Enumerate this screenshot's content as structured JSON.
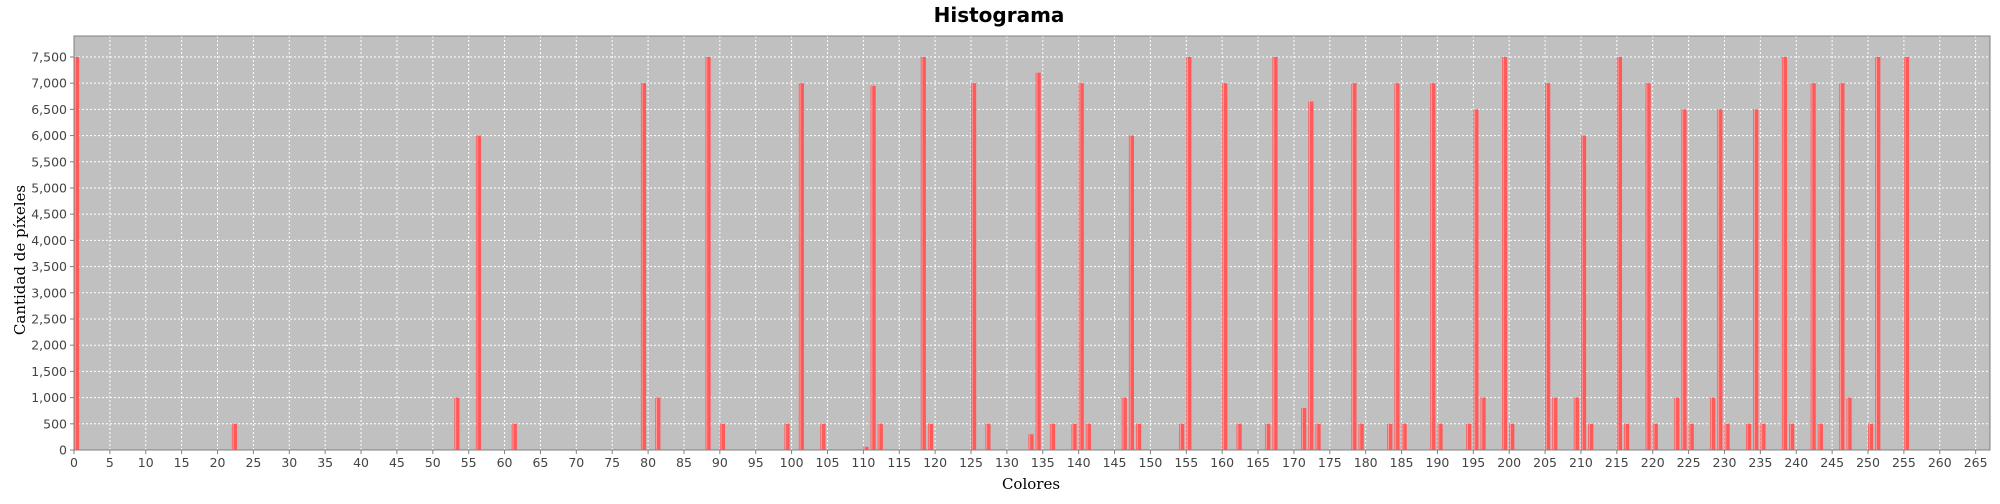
{
  "chart_data": {
    "type": "bar",
    "title": "Histograma",
    "xlabel": "Colores",
    "ylabel": "Cantidad de píxeles",
    "xlim": [
      0,
      267
    ],
    "ylim": [
      0,
      7900
    ],
    "x_ticks": [
      0,
      5,
      10,
      15,
      20,
      25,
      30,
      35,
      40,
      45,
      50,
      55,
      60,
      65,
      70,
      75,
      80,
      85,
      90,
      95,
      100,
      105,
      110,
      115,
      120,
      125,
      130,
      135,
      140,
      145,
      150,
      155,
      160,
      165,
      170,
      175,
      180,
      185,
      190,
      195,
      200,
      205,
      210,
      215,
      220,
      225,
      230,
      235,
      240,
      245,
      250,
      255,
      260,
      265
    ],
    "y_ticks": [
      0,
      500,
      1000,
      1500,
      2000,
      2500,
      3000,
      3500,
      4000,
      4500,
      5000,
      5500,
      6000,
      6500,
      7000,
      7500
    ],
    "y_tick_labels": [
      "0",
      "500",
      "1,000",
      "1,500",
      "2,000",
      "2,500",
      "3,000",
      "3,500",
      "4,000",
      "4,500",
      "5,000",
      "5,500",
      "6,000",
      "6,500",
      "7,000",
      "7,500"
    ],
    "grid": true,
    "legend": "none",
    "series": [
      {
        "color": "#ff5a5a",
        "points": [
          {
            "x": 0,
            "y": 7500
          },
          {
            "x": 22,
            "y": 500
          },
          {
            "x": 53,
            "y": 1000
          },
          {
            "x": 56,
            "y": 6000
          },
          {
            "x": 61,
            "y": 500
          },
          {
            "x": 79,
            "y": 7000
          },
          {
            "x": 81,
            "y": 1000
          },
          {
            "x": 88,
            "y": 7500
          },
          {
            "x": 90,
            "y": 500
          },
          {
            "x": 99,
            "y": 500
          },
          {
            "x": 101,
            "y": 7000
          },
          {
            "x": 104,
            "y": 500
          },
          {
            "x": 110,
            "y": 60
          },
          {
            "x": 111,
            "y": 6950
          },
          {
            "x": 112,
            "y": 500
          },
          {
            "x": 118,
            "y": 7500
          },
          {
            "x": 119,
            "y": 500
          },
          {
            "x": 125,
            "y": 7000
          },
          {
            "x": 127,
            "y": 500
          },
          {
            "x": 133,
            "y": 300
          },
          {
            "x": 134,
            "y": 7200
          },
          {
            "x": 136,
            "y": 500
          },
          {
            "x": 139,
            "y": 500
          },
          {
            "x": 140,
            "y": 7000
          },
          {
            "x": 141,
            "y": 500
          },
          {
            "x": 146,
            "y": 1000
          },
          {
            "x": 147,
            "y": 6000
          },
          {
            "x": 148,
            "y": 500
          },
          {
            "x": 154,
            "y": 500
          },
          {
            "x": 155,
            "y": 7500
          },
          {
            "x": 160,
            "y": 7000
          },
          {
            "x": 162,
            "y": 500
          },
          {
            "x": 166,
            "y": 500
          },
          {
            "x": 167,
            "y": 7500
          },
          {
            "x": 171,
            "y": 800
          },
          {
            "x": 172,
            "y": 6650
          },
          {
            "x": 173,
            "y": 500
          },
          {
            "x": 178,
            "y": 7000
          },
          {
            "x": 179,
            "y": 500
          },
          {
            "x": 183,
            "y": 500
          },
          {
            "x": 184,
            "y": 7000
          },
          {
            "x": 185,
            "y": 500
          },
          {
            "x": 189,
            "y": 7000
          },
          {
            "x": 190,
            "y": 500
          },
          {
            "x": 194,
            "y": 500
          },
          {
            "x": 195,
            "y": 6500
          },
          {
            "x": 196,
            "y": 1000
          },
          {
            "x": 199,
            "y": 7500
          },
          {
            "x": 200,
            "y": 500
          },
          {
            "x": 205,
            "y": 7000
          },
          {
            "x": 206,
            "y": 1000
          },
          {
            "x": 209,
            "y": 1000
          },
          {
            "x": 210,
            "y": 6000
          },
          {
            "x": 211,
            "y": 500
          },
          {
            "x": 215,
            "y": 7500
          },
          {
            "x": 216,
            "y": 500
          },
          {
            "x": 219,
            "y": 7000
          },
          {
            "x": 220,
            "y": 500
          },
          {
            "x": 223,
            "y": 1000
          },
          {
            "x": 224,
            "y": 6500
          },
          {
            "x": 225,
            "y": 500
          },
          {
            "x": 228,
            "y": 1000
          },
          {
            "x": 229,
            "y": 6500
          },
          {
            "x": 230,
            "y": 500
          },
          {
            "x": 233,
            "y": 500
          },
          {
            "x": 234,
            "y": 6500
          },
          {
            "x": 235,
            "y": 500
          },
          {
            "x": 238,
            "y": 7500
          },
          {
            "x": 239,
            "y": 500
          },
          {
            "x": 242,
            "y": 7000
          },
          {
            "x": 243,
            "y": 500
          },
          {
            "x": 246,
            "y": 7000
          },
          {
            "x": 247,
            "y": 1000
          },
          {
            "x": 250,
            "y": 500
          },
          {
            "x": 251,
            "y": 7500
          },
          {
            "x": 255,
            "y": 7500
          }
        ]
      }
    ]
  }
}
